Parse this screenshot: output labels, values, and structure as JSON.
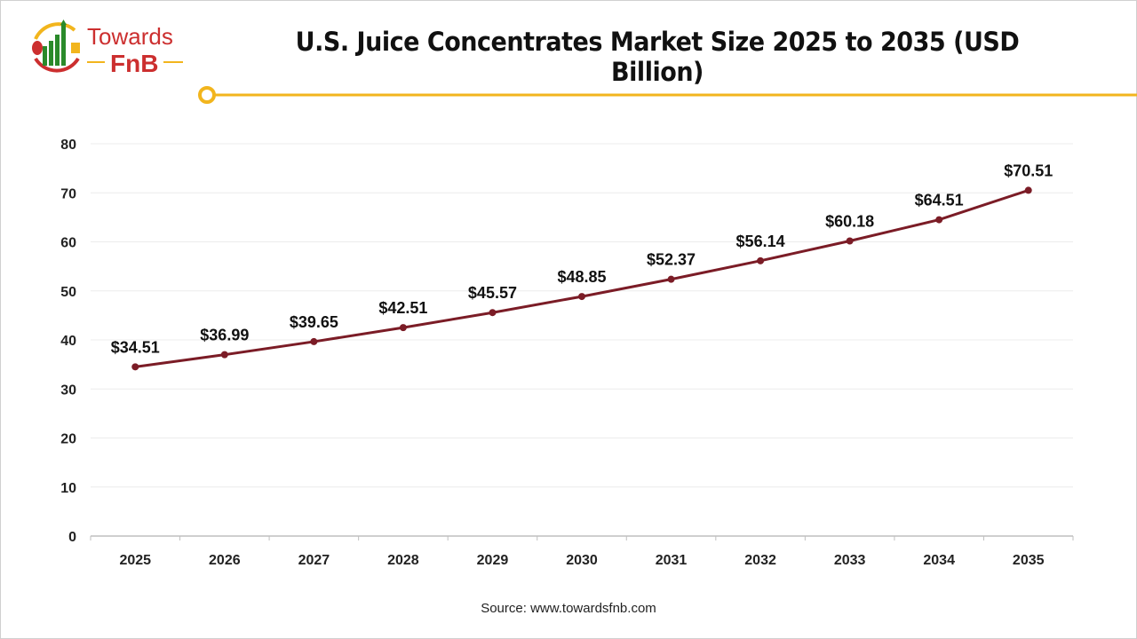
{
  "logo": {
    "text_top": "Towards",
    "text_bottom": "FnB"
  },
  "source": "Source: www.towardsfnb.com",
  "colors": {
    "line": "#7b1c26",
    "accent": "#f2b51d",
    "logo_red": "#cc2f2f",
    "logo_green": "#2a8a2a"
  },
  "chart_data": {
    "type": "line",
    "title": "U.S. Juice Concentrates Market Size 2025 to 2035 (USD Billion)",
    "xlabel": "",
    "ylabel": "",
    "categories": [
      "2025",
      "2026",
      "2027",
      "2028",
      "2029",
      "2030",
      "2031",
      "2032",
      "2033",
      "2034",
      "2035"
    ],
    "values": [
      34.51,
      36.99,
      39.65,
      42.51,
      45.57,
      48.85,
      52.37,
      56.14,
      60.18,
      64.51,
      70.51
    ],
    "data_labels": [
      "$34.51",
      "$36.99",
      "$39.65",
      "$42.51",
      "$45.57",
      "$48.85",
      "$52.37",
      "$56.14",
      "$60.18",
      "$64.51",
      "$70.51"
    ],
    "ylim": [
      0,
      80
    ],
    "yticks": [
      "0",
      "10",
      "20",
      "30",
      "40",
      "50",
      "60",
      "70",
      "80"
    ],
    "grid": true,
    "legend": "none"
  }
}
